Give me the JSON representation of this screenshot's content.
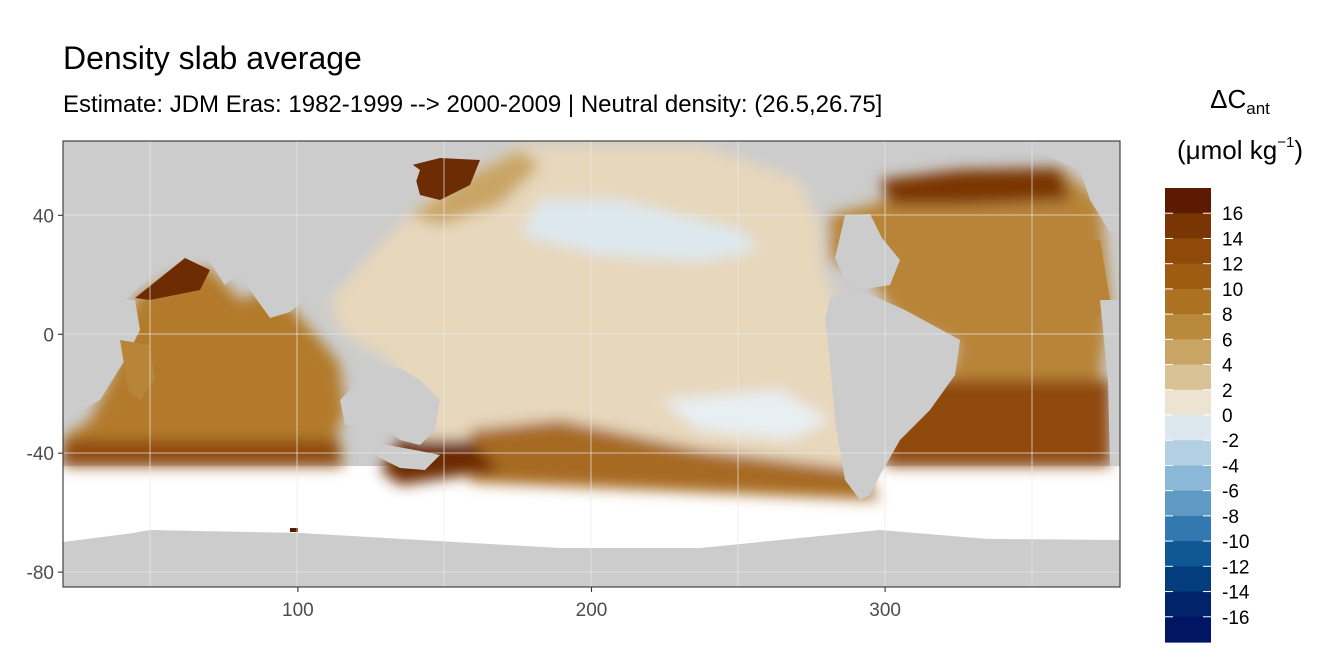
{
  "title": "Density slab average",
  "subtitle": "Estimate: JDM Eras: 1982-1999 --> 2000-2009 | Neutral density: (26.5,26.75]",
  "legend": {
    "title_main": "ΔC",
    "title_sub": "ant",
    "unit_main": "(μmol kg",
    "unit_sup": "−1",
    "unit_close": ")",
    "labels": [
      "16",
      "14",
      "12",
      "10",
      "8",
      "6",
      "4",
      "2",
      "0",
      "-2",
      "-4",
      "-6",
      "-8",
      "-10",
      "-12",
      "-14",
      "-16"
    ],
    "colors": [
      "#5c1a02",
      "#7a3505",
      "#8f4a0a",
      "#9e5c12",
      "#ad7221",
      "#b98a3b",
      "#c9a565",
      "#d9c296",
      "#ece3d3",
      "#dde8ee",
      "#b3d0e3",
      "#8bb8d6",
      "#5f9ac5",
      "#3378ae",
      "#105895",
      "#033d7d",
      "#01236a",
      "#001564"
    ]
  },
  "chart_data": {
    "type": "heatmap",
    "title": "Density slab average",
    "subtitle": "Estimate: JDM Eras: 1982-1999 --> 2000-2009 | Neutral density: (26.5,26.75]",
    "xlabel": "",
    "ylabel": "",
    "xlim": [
      20,
      380
    ],
    "ylim": [
      -85,
      65
    ],
    "x_ticks": [
      100,
      200,
      300
    ],
    "y_ticks": [
      40,
      0,
      -40,
      -80
    ],
    "variable": "ΔCant",
    "units": "μmol kg−1",
    "color_range": [
      -18,
      18
    ],
    "color_breaks": [
      16,
      14,
      12,
      10,
      8,
      6,
      4,
      2,
      0,
      -2,
      -4,
      -6,
      -8,
      -10,
      -12,
      -14,
      -16
    ],
    "grid": true,
    "legend_position": "right",
    "land_color": "#cccccc"
  }
}
